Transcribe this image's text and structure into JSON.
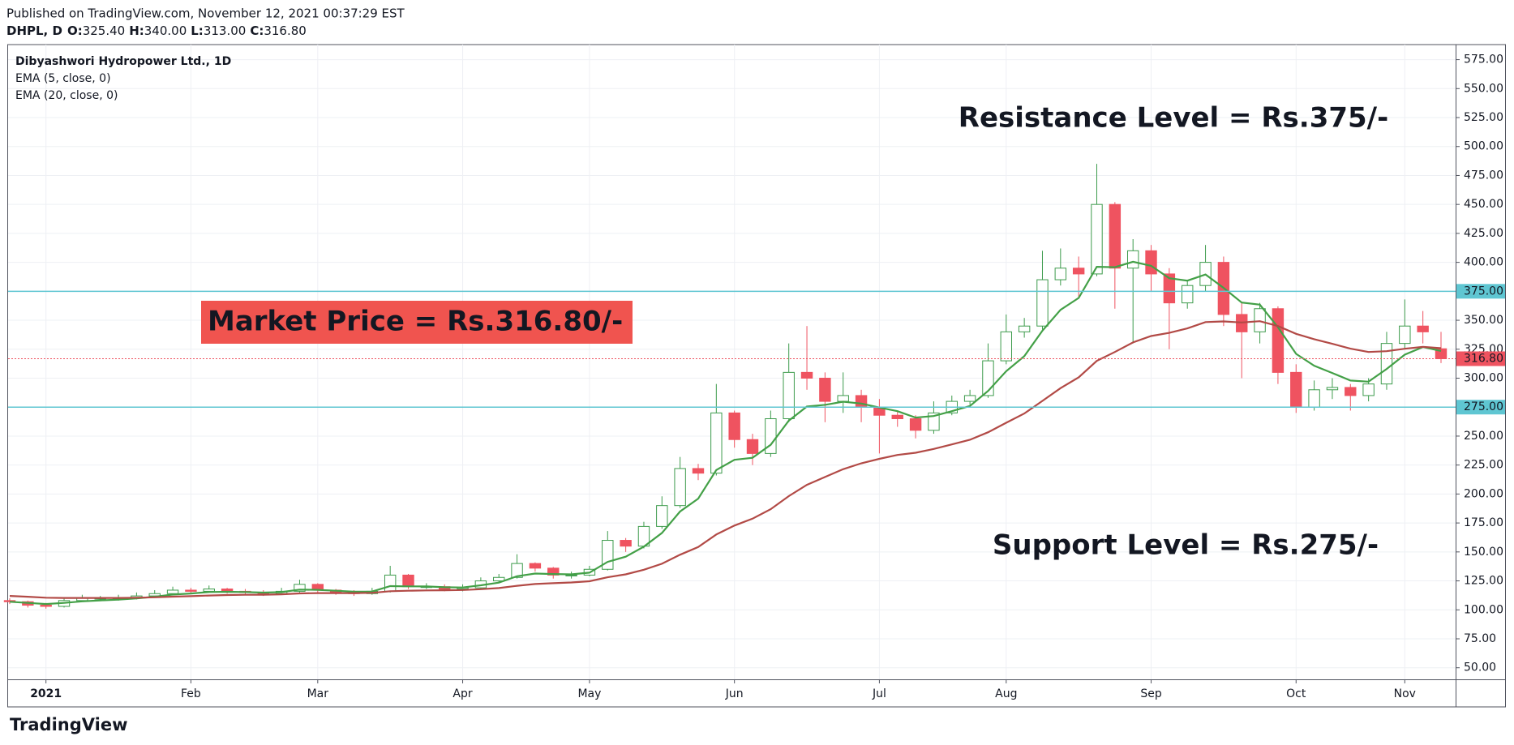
{
  "chart_data": {
    "type": "candlestick",
    "published": "Published on TradingView.com, November 12, 2021 00:37:29 EST",
    "symbol": "DHPL, D",
    "ohlc_labels": [
      "O:",
      "H:",
      "L:",
      "C:"
    ],
    "ohlc_values": [
      {
        "value": 325.4,
        "label": "325.40"
      },
      {
        "value": 340,
        "label": "340.00"
      },
      {
        "value": 313,
        "label": "313.00"
      },
      {
        "value": 316.8,
        "label": "316.80"
      }
    ],
    "title": "Dibyashwori Hydropower Ltd., 1D",
    "branding": "TradingView",
    "categories": [
      null,
      null,
      "2021",
      null,
      null,
      null,
      null,
      null,
      null,
      null,
      "Feb",
      null,
      null,
      null,
      null,
      null,
      null,
      "Mar",
      null,
      null,
      null,
      null,
      null,
      null,
      null,
      "Apr",
      null,
      null,
      null,
      null,
      null,
      null,
      "May",
      null,
      null,
      null,
      null,
      null,
      null,
      null,
      "Jun",
      null,
      null,
      null,
      null,
      null,
      null,
      null,
      "Jul",
      null,
      null,
      null,
      null,
      null,
      null,
      "Aug",
      null,
      null,
      null,
      null,
      null,
      null,
      null,
      "Sep",
      null,
      null,
      null,
      null,
      null,
      null,
      null,
      "Oct",
      null,
      null,
      null,
      null,
      null,
      "Nov",
      null,
      null
    ],
    "open": [
      108,
      107,
      104,
      103,
      108,
      110,
      110,
      110,
      112,
      114,
      117,
      116,
      118,
      116,
      115,
      114,
      116,
      122,
      117,
      115,
      114,
      116,
      130,
      120,
      120,
      118,
      119,
      125,
      128,
      140,
      136,
      130,
      130,
      135,
      160,
      155,
      172,
      190,
      222,
      218,
      270,
      247,
      235,
      265,
      305,
      300,
      280,
      285,
      275,
      268,
      265,
      255,
      270,
      280,
      285,
      315,
      340,
      345,
      385,
      395,
      390,
      450,
      395,
      410,
      390,
      365,
      380,
      400,
      355,
      340,
      360,
      305,
      275,
      290,
      292,
      285,
      295,
      330,
      345,
      325.4
    ],
    "high": [
      110,
      108,
      106,
      110,
      113,
      112,
      113,
      115,
      117,
      120,
      119,
      121,
      119,
      118,
      117,
      119,
      126,
      123,
      118,
      117,
      119,
      138,
      131,
      123,
      122,
      122,
      128,
      131,
      148,
      141,
      137,
      133,
      138,
      168,
      162,
      176,
      198,
      232,
      226,
      295,
      272,
      252,
      272,
      330,
      345,
      305,
      305,
      290,
      282,
      272,
      268,
      280,
      285,
      290,
      330,
      355,
      352,
      410,
      412,
      405,
      485,
      452,
      420,
      415,
      395,
      385,
      415,
      405,
      365,
      365,
      362,
      312,
      298,
      300,
      295,
      300,
      340,
      368,
      358,
      340
    ],
    "low": [
      105,
      102,
      101,
      102,
      107,
      108,
      108,
      109,
      111,
      113,
      114,
      115,
      114,
      113,
      112,
      113,
      115,
      115,
      113,
      112,
      113,
      115,
      118,
      118,
      116,
      116,
      118,
      123,
      127,
      133,
      127,
      127,
      129,
      134,
      150,
      153,
      170,
      188,
      212,
      216,
      240,
      225,
      232,
      262,
      290,
      262,
      270,
      262,
      235,
      258,
      248,
      252,
      268,
      277,
      283,
      312,
      335,
      342,
      380,
      370,
      388,
      360,
      330,
      375,
      325,
      360,
      375,
      345,
      300,
      330,
      295,
      270,
      272,
      282,
      272,
      280,
      290,
      325,
      330,
      313
    ],
    "close": [
      107,
      104,
      103,
      108,
      110,
      110,
      110,
      112,
      114,
      117,
      116,
      118,
      116,
      115,
      114,
      116,
      122,
      117,
      115,
      114,
      116,
      130,
      120,
      120,
      118,
      119,
      125,
      128,
      140,
      136,
      130,
      130,
      135,
      160,
      155,
      172,
      190,
      222,
      218,
      270,
      247,
      235,
      265,
      305,
      300,
      280,
      285,
      275,
      268,
      265,
      255,
      270,
      280,
      285,
      315,
      340,
      345,
      385,
      395,
      390,
      450,
      395,
      410,
      390,
      365,
      380,
      400,
      355,
      340,
      360,
      305,
      275,
      290,
      292,
      285,
      295,
      330,
      345,
      340,
      316.8
    ],
    "up_color": "#3d9b4c",
    "down_color": "#ef5360",
    "series": [
      {
        "name": "EMA (5, close, 0)",
        "color": "#43a047",
        "values": [
          107,
          106,
          105,
          106,
          107.3,
          108.2,
          108.8,
          109.9,
          111.3,
          113.2,
          114.1,
          115.4,
          115.6,
          115.4,
          114.9,
          115.3,
          117.5,
          117.3,
          116.5,
          115.7,
          115.8,
          120.5,
          120.3,
          120.2,
          119.5,
          119.3,
          121.2,
          123.5,
          129,
          131.3,
          130.9,
          130.6,
          132.1,
          141.4,
          145.9,
          154.6,
          166.4,
          184.9,
          196,
          220.7,
          229.5,
          231.3,
          242.5,
          263.3,
          275.5,
          277,
          279.7,
          278.1,
          274.7,
          271.5,
          266,
          267.3,
          271.5,
          276,
          289,
          306,
          319,
          341,
          359,
          369.3,
          396.2,
          395.8,
          400.5,
          397,
          386.3,
          384.2,
          389.5,
          378,
          365.3,
          363.5,
          344,
          321,
          310.7,
          304.5,
          298,
          297,
          308,
          320.3,
          326.9,
          323.5
        ]
      },
      {
        "name": "EMA (20, close, 0)",
        "color": "#b24a46",
        "values": [
          112,
          111.3,
          110.5,
          110.3,
          110.3,
          110.3,
          110.3,
          110.5,
          110.8,
          111.4,
          111.8,
          112.4,
          112.8,
          113,
          113.1,
          113.4,
          114.2,
          114.5,
          114.5,
          114.5,
          114.7,
          116.1,
          116.5,
          116.8,
          116.9,
          117.1,
          117.8,
          118.8,
          120.8,
          122.3,
          123,
          123.6,
          124.7,
          128.1,
          130.6,
          134.6,
          139.8,
          147.6,
          154.2,
          165.1,
          172.8,
          178.7,
          186.9,
          198.2,
          207.9,
          214.7,
          221.4,
          226.5,
          230.4,
          233.7,
          235.6,
          238.9,
          242.8,
          246.8,
          253.3,
          261.5,
          269.5,
          280.4,
          291.4,
          300.7,
          314.9,
          322.6,
          330.9,
          336.4,
          339.1,
          343,
          348.4,
          349,
          348.1,
          349.2,
          345,
          338.3,
          333.7,
          329.7,
          325.5,
          322.6,
          323.3,
          325.4,
          327,
          325.9
        ]
      }
    ],
    "ylim": [
      40,
      588
    ],
    "yticks": [
      {
        "value": 50,
        "label": "50.00"
      },
      {
        "value": 75,
        "label": "75.00"
      },
      {
        "value": 100,
        "label": "100.00"
      },
      {
        "value": 125,
        "label": "125.00"
      },
      {
        "value": 150,
        "label": "150.00"
      },
      {
        "value": 175,
        "label": "175.00"
      },
      {
        "value": 200,
        "label": "200.00"
      },
      {
        "value": 225,
        "label": "225.00"
      },
      {
        "value": 250,
        "label": "250.00"
      },
      {
        "value": 275,
        "label": "275.00"
      },
      {
        "value": 300,
        "label": "300.00"
      },
      {
        "value": 325,
        "label": "325.00"
      },
      {
        "value": 350,
        "label": "350.00"
      },
      {
        "value": 375,
        "label": "375.00"
      },
      {
        "value": 400,
        "label": "400.00"
      },
      {
        "value": 425,
        "label": "425.00"
      },
      {
        "value": 450,
        "label": "450.00"
      },
      {
        "value": 475,
        "label": "475.00"
      },
      {
        "value": 500,
        "label": "500.00"
      },
      {
        "value": 525,
        "label": "525.00"
      },
      {
        "value": 550,
        "label": "550.00"
      },
      {
        "value": 575,
        "label": "575.00"
      }
    ],
    "grid": true,
    "hlines": [
      {
        "value": 375,
        "label": "375.00",
        "color": "#5fc6d2"
      },
      {
        "value": 275,
        "label": "275.00",
        "color": "#5fc6d2"
      }
    ],
    "last_price": {
      "value": 316.8,
      "label": "316.80",
      "color": "#ef5360"
    },
    "annotations": [
      {
        "text": "Resistance Level = Rs.375/-",
        "color": "#3b7a26"
      },
      {
        "text": "Support Level = Rs.275/-",
        "color": "#3b7a26"
      },
      {
        "text": "Market Price = Rs.316.80/-",
        "color": "#ffffff",
        "background": "#f0544f"
      }
    ]
  }
}
